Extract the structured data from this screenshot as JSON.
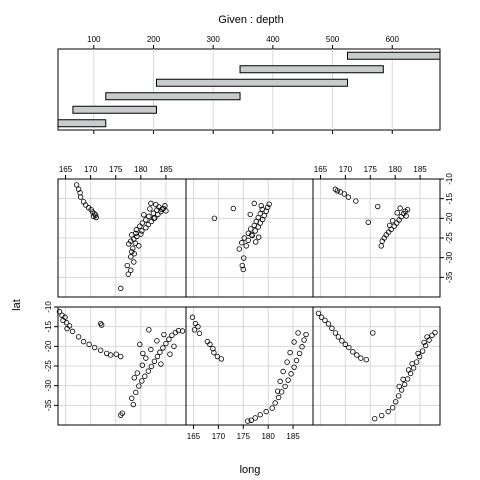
{
  "chart_data": {
    "type": "scatter",
    "title": "Given : depth",
    "xlabel": "long",
    "ylabel": "lat",
    "grid": true,
    "given": {
      "variable": "depth",
      "xlim": [
        40,
        680
      ],
      "ticks": [
        100,
        200,
        300,
        400,
        500,
        600
      ],
      "tick_labels": [
        "100",
        "200",
        "300",
        "400",
        "500",
        "600"
      ],
      "intervals": [
        [
          40,
          120
        ],
        [
          65,
          205
        ],
        [
          120,
          345
        ],
        [
          205,
          525
        ],
        [
          345,
          585
        ],
        [
          525,
          680
        ]
      ]
    },
    "panel_xlim": [
      163.5,
      189
    ],
    "panel_ylim": [
      -40,
      -10
    ],
    "x_ticks": [
      165,
      170,
      175,
      180,
      185
    ],
    "x_tick_labels": [
      "165",
      "170",
      "175",
      "180",
      "185"
    ],
    "y_ticks": [
      -35,
      -30,
      -25,
      -20,
      -15,
      -10
    ],
    "y_tick_labels": [
      "-35",
      "-30",
      "-25",
      "-20",
      "-15",
      "-10"
    ],
    "panels": [
      {
        "row": 1,
        "col": 1,
        "interval": 1,
        "points": [
          [
            176,
            -37.8
          ],
          [
            177.5,
            -34.2
          ],
          [
            178,
            -33.2
          ],
          [
            177.3,
            -32.0
          ],
          [
            178.6,
            -31.1
          ],
          [
            178,
            -29.8
          ],
          [
            178.7,
            -29.0
          ],
          [
            178.4,
            -27.6
          ],
          [
            179.6,
            -27.0
          ],
          [
            178.9,
            -26.3
          ],
          [
            178.0,
            -25.8
          ],
          [
            178.6,
            -25.3
          ],
          [
            179.2,
            -24.6
          ],
          [
            178.2,
            -24.2
          ],
          [
            179.0,
            -23.8
          ],
          [
            180.2,
            -23.2
          ],
          [
            179.1,
            -22.9
          ],
          [
            181.0,
            -22.4
          ],
          [
            179.8,
            -22.0
          ],
          [
            181.5,
            -21.6
          ],
          [
            180.3,
            -21.2
          ],
          [
            182.1,
            -20.8
          ],
          [
            181.0,
            -20.4
          ],
          [
            182.8,
            -19.9
          ],
          [
            181.6,
            -19.5
          ],
          [
            183.4,
            -19.0
          ],
          [
            182.5,
            -18.7
          ],
          [
            184.0,
            -18.3
          ],
          [
            183.2,
            -17.9
          ],
          [
            184.5,
            -17.5
          ],
          [
            183.6,
            -17.1
          ],
          [
            184.8,
            -16.8
          ],
          [
            183.0,
            -16.5
          ],
          [
            182.0,
            -16.2
          ],
          [
            184.2,
            -17.7
          ],
          [
            185.0,
            -18.1
          ],
          [
            182.6,
            -20.0
          ],
          [
            180.6,
            -19.1
          ],
          [
            181.8,
            -17.6
          ],
          [
            180.0,
            -24.0
          ],
          [
            177.6,
            -26.5
          ],
          [
            178.2,
            -28.5
          ],
          [
            167.2,
            -11.5
          ],
          [
            167.6,
            -12.6
          ],
          [
            167.9,
            -13.5
          ],
          [
            168.0,
            -14.6
          ],
          [
            168.6,
            -15.8
          ],
          [
            169.0,
            -16.6
          ],
          [
            169.6,
            -17.3
          ],
          [
            170.1,
            -17.8
          ],
          [
            170.4,
            -18.4
          ],
          [
            170.8,
            -18.9
          ],
          [
            171.0,
            -19.2
          ],
          [
            170.6,
            -19.5
          ],
          [
            171.1,
            -19.8
          ]
        ]
      },
      {
        "row": 1,
        "col": 2,
        "interval": 2,
        "points": [
          [
            169.2,
            -20.0
          ],
          [
            174.8,
            -32.0
          ],
          [
            175.0,
            -33.0
          ],
          [
            175.1,
            -30.1
          ],
          [
            174.2,
            -27.8
          ],
          [
            175.6,
            -27.0
          ],
          [
            174.7,
            -26.2
          ],
          [
            176.0,
            -25.6
          ],
          [
            175.2,
            -25.0
          ],
          [
            176.8,
            -24.4
          ],
          [
            176.0,
            -23.8
          ],
          [
            177.4,
            -23.2
          ],
          [
            176.5,
            -22.7
          ],
          [
            178.0,
            -22.2
          ],
          [
            177.2,
            -21.8
          ],
          [
            178.4,
            -21.2
          ],
          [
            177.6,
            -20.8
          ],
          [
            178.9,
            -20.3
          ],
          [
            178.0,
            -19.8
          ],
          [
            179.2,
            -19.3
          ],
          [
            178.4,
            -18.8
          ],
          [
            179.6,
            -18.2
          ],
          [
            178.8,
            -17.7
          ],
          [
            179.9,
            -17.2
          ],
          [
            178.6,
            -16.8
          ],
          [
            180.2,
            -16.4
          ],
          [
            177.2,
            -16.2
          ],
          [
            176.4,
            -19.0
          ],
          [
            173.0,
            -17.5
          ],
          [
            177.5,
            -26.0
          ],
          [
            176.7,
            -24.2
          ],
          [
            178.1,
            -24.8
          ]
        ]
      },
      {
        "row": 1,
        "col": 3,
        "interval": 3,
        "points": [
          [
            168.0,
            -12.6
          ],
          [
            168.4,
            -13.0
          ],
          [
            169.0,
            -13.3
          ],
          [
            169.8,
            -13.8
          ],
          [
            170.6,
            -14.6
          ],
          [
            172.1,
            -15.6
          ],
          [
            174.6,
            -21.0
          ],
          [
            176.5,
            -17.0
          ],
          [
            177.2,
            -27.0
          ],
          [
            177.4,
            -25.8
          ],
          [
            177.8,
            -25.0
          ],
          [
            178.2,
            -24.2
          ],
          [
            178.7,
            -23.5
          ],
          [
            179.2,
            -22.8
          ],
          [
            179.8,
            -22.0
          ],
          [
            180.3,
            -21.2
          ],
          [
            180.8,
            -20.4
          ],
          [
            181.2,
            -19.6
          ],
          [
            181.7,
            -18.8
          ],
          [
            182.0,
            -18.2
          ],
          [
            182.5,
            -17.8
          ],
          [
            181.0,
            -17.4
          ],
          [
            180.4,
            -18.6
          ],
          [
            179.5,
            -20.6
          ],
          [
            178.9,
            -21.8
          ],
          [
            182.2,
            -19.4
          ]
        ]
      },
      {
        "row": 2,
        "col": 1,
        "interval": 4,
        "points": [
          [
            163.8,
            -11.2
          ],
          [
            164.3,
            -12.1
          ],
          [
            164.9,
            -12.6
          ],
          [
            164.5,
            -13.4
          ],
          [
            165.2,
            -14.0
          ],
          [
            165.8,
            -14.8
          ],
          [
            165.3,
            -15.5
          ],
          [
            166.4,
            -16.2
          ],
          [
            167.6,
            -17.6
          ],
          [
            168.6,
            -18.8
          ],
          [
            169.7,
            -19.5
          ],
          [
            170.8,
            -20.3
          ],
          [
            172.0,
            -21.0
          ],
          [
            173.2,
            -21.8
          ],
          [
            174.0,
            -22.2
          ],
          [
            175.1,
            -22.0
          ],
          [
            176.0,
            -22.6
          ],
          [
            172.0,
            -14.2
          ],
          [
            172.2,
            -14.6
          ],
          [
            176.3,
            -37.0
          ],
          [
            176.0,
            -37.5
          ],
          [
            178.5,
            -34.8
          ],
          [
            178.2,
            -33.2
          ],
          [
            179.0,
            -31.7
          ],
          [
            179.6,
            -30.1
          ],
          [
            180.2,
            -28.8
          ],
          [
            180.8,
            -27.6
          ],
          [
            181.5,
            -26.3
          ],
          [
            182.1,
            -25.1
          ],
          [
            182.7,
            -23.8
          ],
          [
            183.3,
            -22.6
          ],
          [
            183.8,
            -21.5
          ],
          [
            184.4,
            -20.4
          ],
          [
            185.0,
            -19.3
          ],
          [
            185.6,
            -18.2
          ],
          [
            186.2,
            -17.2
          ],
          [
            186.9,
            -16.5
          ],
          [
            187.5,
            -16.0
          ],
          [
            188.3,
            -16.1
          ],
          [
            184.6,
            -17.0
          ],
          [
            183.2,
            -18.6
          ],
          [
            182.0,
            -20.8
          ],
          [
            181.0,
            -23.0
          ],
          [
            180.3,
            -24.8
          ],
          [
            179.3,
            -26.8
          ],
          [
            178.7,
            -28.0
          ],
          [
            181.6,
            -15.8
          ],
          [
            180.4,
            -21.8
          ],
          [
            179.8,
            -19.5
          ],
          [
            185.8,
            -22.0
          ],
          [
            186.6,
            -20.0
          ],
          [
            184.0,
            -24.5
          ]
        ]
      },
      {
        "row": 2,
        "col": 2,
        "interval": 5,
        "points": [
          [
            164.8,
            -12.6
          ],
          [
            165.4,
            -14.2
          ],
          [
            165.9,
            -15.0
          ],
          [
            165.2,
            -15.8
          ],
          [
            166.2,
            -16.7
          ],
          [
            167.8,
            -18.8
          ],
          [
            168.3,
            -19.5
          ],
          [
            168.9,
            -20.6
          ],
          [
            169.1,
            -21.6
          ],
          [
            169.8,
            -22.6
          ],
          [
            170.6,
            -23.2
          ],
          [
            175.9,
            -39.0
          ],
          [
            176.6,
            -38.8
          ],
          [
            177.4,
            -38.2
          ],
          [
            178.4,
            -37.4
          ],
          [
            179.6,
            -36.6
          ],
          [
            180.8,
            -35.7
          ],
          [
            181.4,
            -34.4
          ],
          [
            182.1,
            -33.0
          ],
          [
            182.7,
            -31.6
          ],
          [
            183.4,
            -30.2
          ],
          [
            184.0,
            -28.6
          ],
          [
            184.6,
            -27.0
          ],
          [
            185.2,
            -25.3
          ],
          [
            185.7,
            -23.6
          ],
          [
            186.3,
            -21.8
          ],
          [
            186.8,
            -20.1
          ],
          [
            187.2,
            -18.4
          ],
          [
            187.6,
            -17.0
          ],
          [
            186.0,
            -16.6
          ],
          [
            185.2,
            -18.9
          ],
          [
            184.4,
            -21.6
          ],
          [
            183.8,
            -24.0
          ],
          [
            183.0,
            -26.4
          ],
          [
            182.4,
            -28.9
          ],
          [
            181.9,
            -31.4
          ]
        ]
      },
      {
        "row": 2,
        "col": 3,
        "interval": 6,
        "points": [
          [
            164.6,
            -11.6
          ],
          [
            165.2,
            -12.6
          ],
          [
            165.9,
            -13.4
          ],
          [
            166.6,
            -14.3
          ],
          [
            167.3,
            -15.4
          ],
          [
            168.0,
            -16.6
          ],
          [
            168.6,
            -17.6
          ],
          [
            169.3,
            -18.6
          ],
          [
            170.0,
            -19.5
          ],
          [
            170.7,
            -20.3
          ],
          [
            171.5,
            -21.4
          ],
          [
            172.3,
            -22.2
          ],
          [
            173.1,
            -23.0
          ],
          [
            174.2,
            -23.4
          ],
          [
            175.5,
            -16.6
          ],
          [
            175.9,
            -38.4
          ],
          [
            177.3,
            -37.6
          ],
          [
            178.6,
            -36.6
          ],
          [
            179.5,
            -35.6
          ],
          [
            180.1,
            -34.1
          ],
          [
            180.7,
            -32.6
          ],
          [
            181.3,
            -31.1
          ],
          [
            181.9,
            -29.7
          ],
          [
            182.5,
            -28.3
          ],
          [
            183.1,
            -26.9
          ],
          [
            183.7,
            -25.5
          ],
          [
            184.3,
            -24.0
          ],
          [
            184.9,
            -22.6
          ],
          [
            185.5,
            -21.2
          ],
          [
            186.1,
            -19.8
          ],
          [
            186.8,
            -18.4
          ],
          [
            187.4,
            -17.2
          ],
          [
            188.0,
            -16.5
          ],
          [
            186.4,
            -17.6
          ],
          [
            185.8,
            -19.0
          ],
          [
            184.6,
            -21.8
          ],
          [
            183.4,
            -24.4
          ],
          [
            182.7,
            -26.0
          ],
          [
            181.6,
            -28.4
          ],
          [
            180.8,
            -30.2
          ]
        ]
      }
    ]
  }
}
